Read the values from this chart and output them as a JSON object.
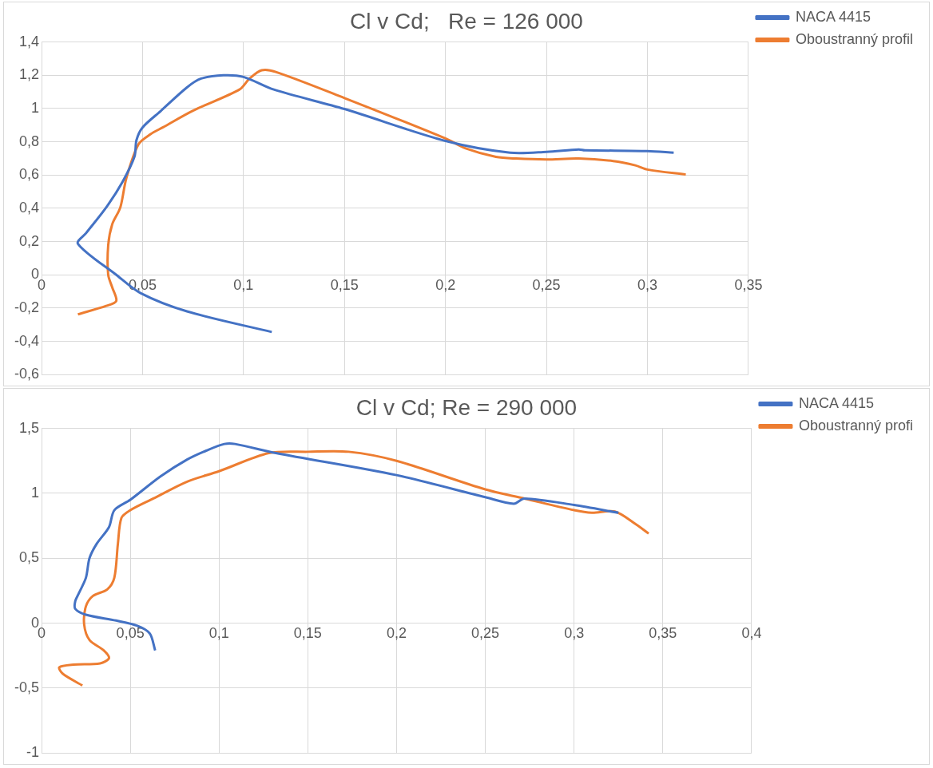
{
  "chart_data": [
    {
      "type": "line",
      "title": "Cl v Cd;   Re = 126 000",
      "marker": "none",
      "line_style": "solid",
      "grid": true,
      "legend": "top right",
      "xlim": [
        0,
        0.35
      ],
      "xticks": [
        {
          "value": 0,
          "label": "0"
        },
        {
          "value": 0.05,
          "label": "0,05"
        },
        {
          "value": 0.1,
          "label": "0,1"
        },
        {
          "value": 0.15,
          "label": "0,15"
        },
        {
          "value": 0.2,
          "label": "0,2"
        },
        {
          "value": 0.25,
          "label": "0,25"
        },
        {
          "value": 0.3,
          "label": "0,3"
        },
        {
          "value": 0.35,
          "label": "0,35"
        }
      ],
      "ylim": [
        -0.6,
        1.4
      ],
      "yticks": [
        {
          "value": -0.6,
          "label": "-0,6"
        },
        {
          "value": -0.4,
          "label": "-0,4"
        },
        {
          "value": -0.2,
          "label": "-0,2"
        },
        {
          "value": 0,
          "label": "0"
        },
        {
          "value": 0.2,
          "label": "0,2"
        },
        {
          "value": 0.4,
          "label": "0,4"
        },
        {
          "value": 0.6,
          "label": "0,6"
        },
        {
          "value": 0.8,
          "label": "0,8"
        },
        {
          "value": 1,
          "label": "1"
        },
        {
          "value": 1.2,
          "label": "1,2"
        },
        {
          "value": 1.4,
          "label": "1,4"
        }
      ],
      "series": [
        {
          "name": "NACA 4415",
          "color": "#4472c4",
          "x": [
            0.114,
            0.072,
            0.049,
            0.037,
            0.018,
            0.022,
            0.032,
            0.04,
            0.046,
            0.047,
            0.05,
            0.059,
            0.072,
            0.079,
            0.09,
            0.1,
            0.115,
            0.15,
            0.2,
            0.232,
            0.25,
            0.266,
            0.269,
            0.3,
            0.313
          ],
          "values": [
            -0.344,
            -0.22,
            -0.11,
            0,
            0.187,
            0.25,
            0.405,
            0.557,
            0.71,
            0.81,
            0.886,
            0.985,
            1.127,
            1.18,
            1.2,
            1.19,
            1.114,
            0.997,
            0.805,
            0.734,
            0.739,
            0.754,
            0.749,
            0.744,
            0.734
          ]
        },
        {
          "name": "Oboustranný profil",
          "color": "#ed7d31",
          "x": [
            0.018,
            0.032,
            0.037,
            0.035,
            0.033,
            0.033,
            0.035,
            0.039,
            0.042,
            0.048,
            0.054,
            0.06,
            0.075,
            0.098,
            0.103,
            0.109,
            0.116,
            0.15,
            0.2,
            0.21,
            0.225,
            0.235,
            0.25,
            0.266,
            0.283,
            0.294,
            0.3,
            0.319
          ],
          "values": [
            -0.238,
            -0.187,
            -0.157,
            -0.076,
            0,
            0.177,
            0.304,
            0.405,
            0.582,
            0.785,
            0.846,
            0.886,
            0.987,
            1.114,
            1.18,
            1.23,
            1.22,
            1.063,
            0.82,
            0.76,
            0.709,
            0.699,
            0.694,
            0.699,
            0.684,
            0.658,
            0.633,
            0.603
          ]
        }
      ]
    },
    {
      "type": "line",
      "title": "Cl v Cd; Re = 290 000",
      "marker": "none",
      "line_style": "solid",
      "grid": true,
      "legend": "top right",
      "xlim": [
        0,
        0.4
      ],
      "xticks": [
        {
          "value": 0,
          "label": "0"
        },
        {
          "value": 0.05,
          "label": "0,05"
        },
        {
          "value": 0.1,
          "label": "0,1"
        },
        {
          "value": 0.15,
          "label": "0,15"
        },
        {
          "value": 0.2,
          "label": "0,2"
        },
        {
          "value": 0.25,
          "label": "0,25"
        },
        {
          "value": 0.3,
          "label": "0,3"
        },
        {
          "value": 0.35,
          "label": "0,35"
        },
        {
          "value": 0.4,
          "label": "0,4"
        }
      ],
      "ylim": [
        -1,
        1.5
      ],
      "yticks": [
        {
          "value": -1,
          "label": "-1"
        },
        {
          "value": -0.5,
          "label": "-0,5"
        },
        {
          "value": 0,
          "label": "0"
        },
        {
          "value": 0.5,
          "label": "0,5"
        },
        {
          "value": 1,
          "label": "1"
        },
        {
          "value": 1.5,
          "label": "1,5"
        }
      ],
      "series": [
        {
          "name": "NACA 4415",
          "color": "#4472c4",
          "x": [
            0.064,
            0.061,
            0.054,
            0.042,
            0.025,
            0.019,
            0.019,
            0.021,
            0.025,
            0.027,
            0.031,
            0.038,
            0.041,
            0.05,
            0.067,
            0.082,
            0.093,
            0.103,
            0.109,
            0.132,
            0.2,
            0.25,
            0.266,
            0.272,
            0.3,
            0.325
          ],
          "values": [
            -0.21,
            -0.08,
            -0.02,
            0.02,
            0.065,
            0.11,
            0.17,
            0.23,
            0.35,
            0.5,
            0.61,
            0.74,
            0.87,
            0.95,
            1.13,
            1.26,
            1.33,
            1.38,
            1.38,
            1.31,
            1.14,
            0.97,
            0.92,
            0.96,
            0.91,
            0.85
          ]
        },
        {
          "name": "Oboustranný profi",
          "color": "#ed7d31",
          "x": [
            0.023,
            0.012,
            0.01,
            0.018,
            0.033,
            0.038,
            0.035,
            0.027,
            0.024,
            0.025,
            0.029,
            0.037,
            0.041,
            0.043,
            0.045,
            0.05,
            0.063,
            0.082,
            0.1,
            0.128,
            0.15,
            0.173,
            0.2,
            0.25,
            0.272,
            0.3,
            0.31,
            0.323,
            0.335,
            0.342
          ],
          "values": [
            -0.48,
            -0.39,
            -0.34,
            -0.32,
            -0.31,
            -0.27,
            -0.21,
            -0.13,
            -0.01,
            0.13,
            0.21,
            0.26,
            0.35,
            0.61,
            0.81,
            0.87,
            0.96,
            1.09,
            1.17,
            1.31,
            1.32,
            1.32,
            1.25,
            1.03,
            0.96,
            0.87,
            0.85,
            0.86,
            0.76,
            0.69
          ]
        }
      ]
    }
  ]
}
